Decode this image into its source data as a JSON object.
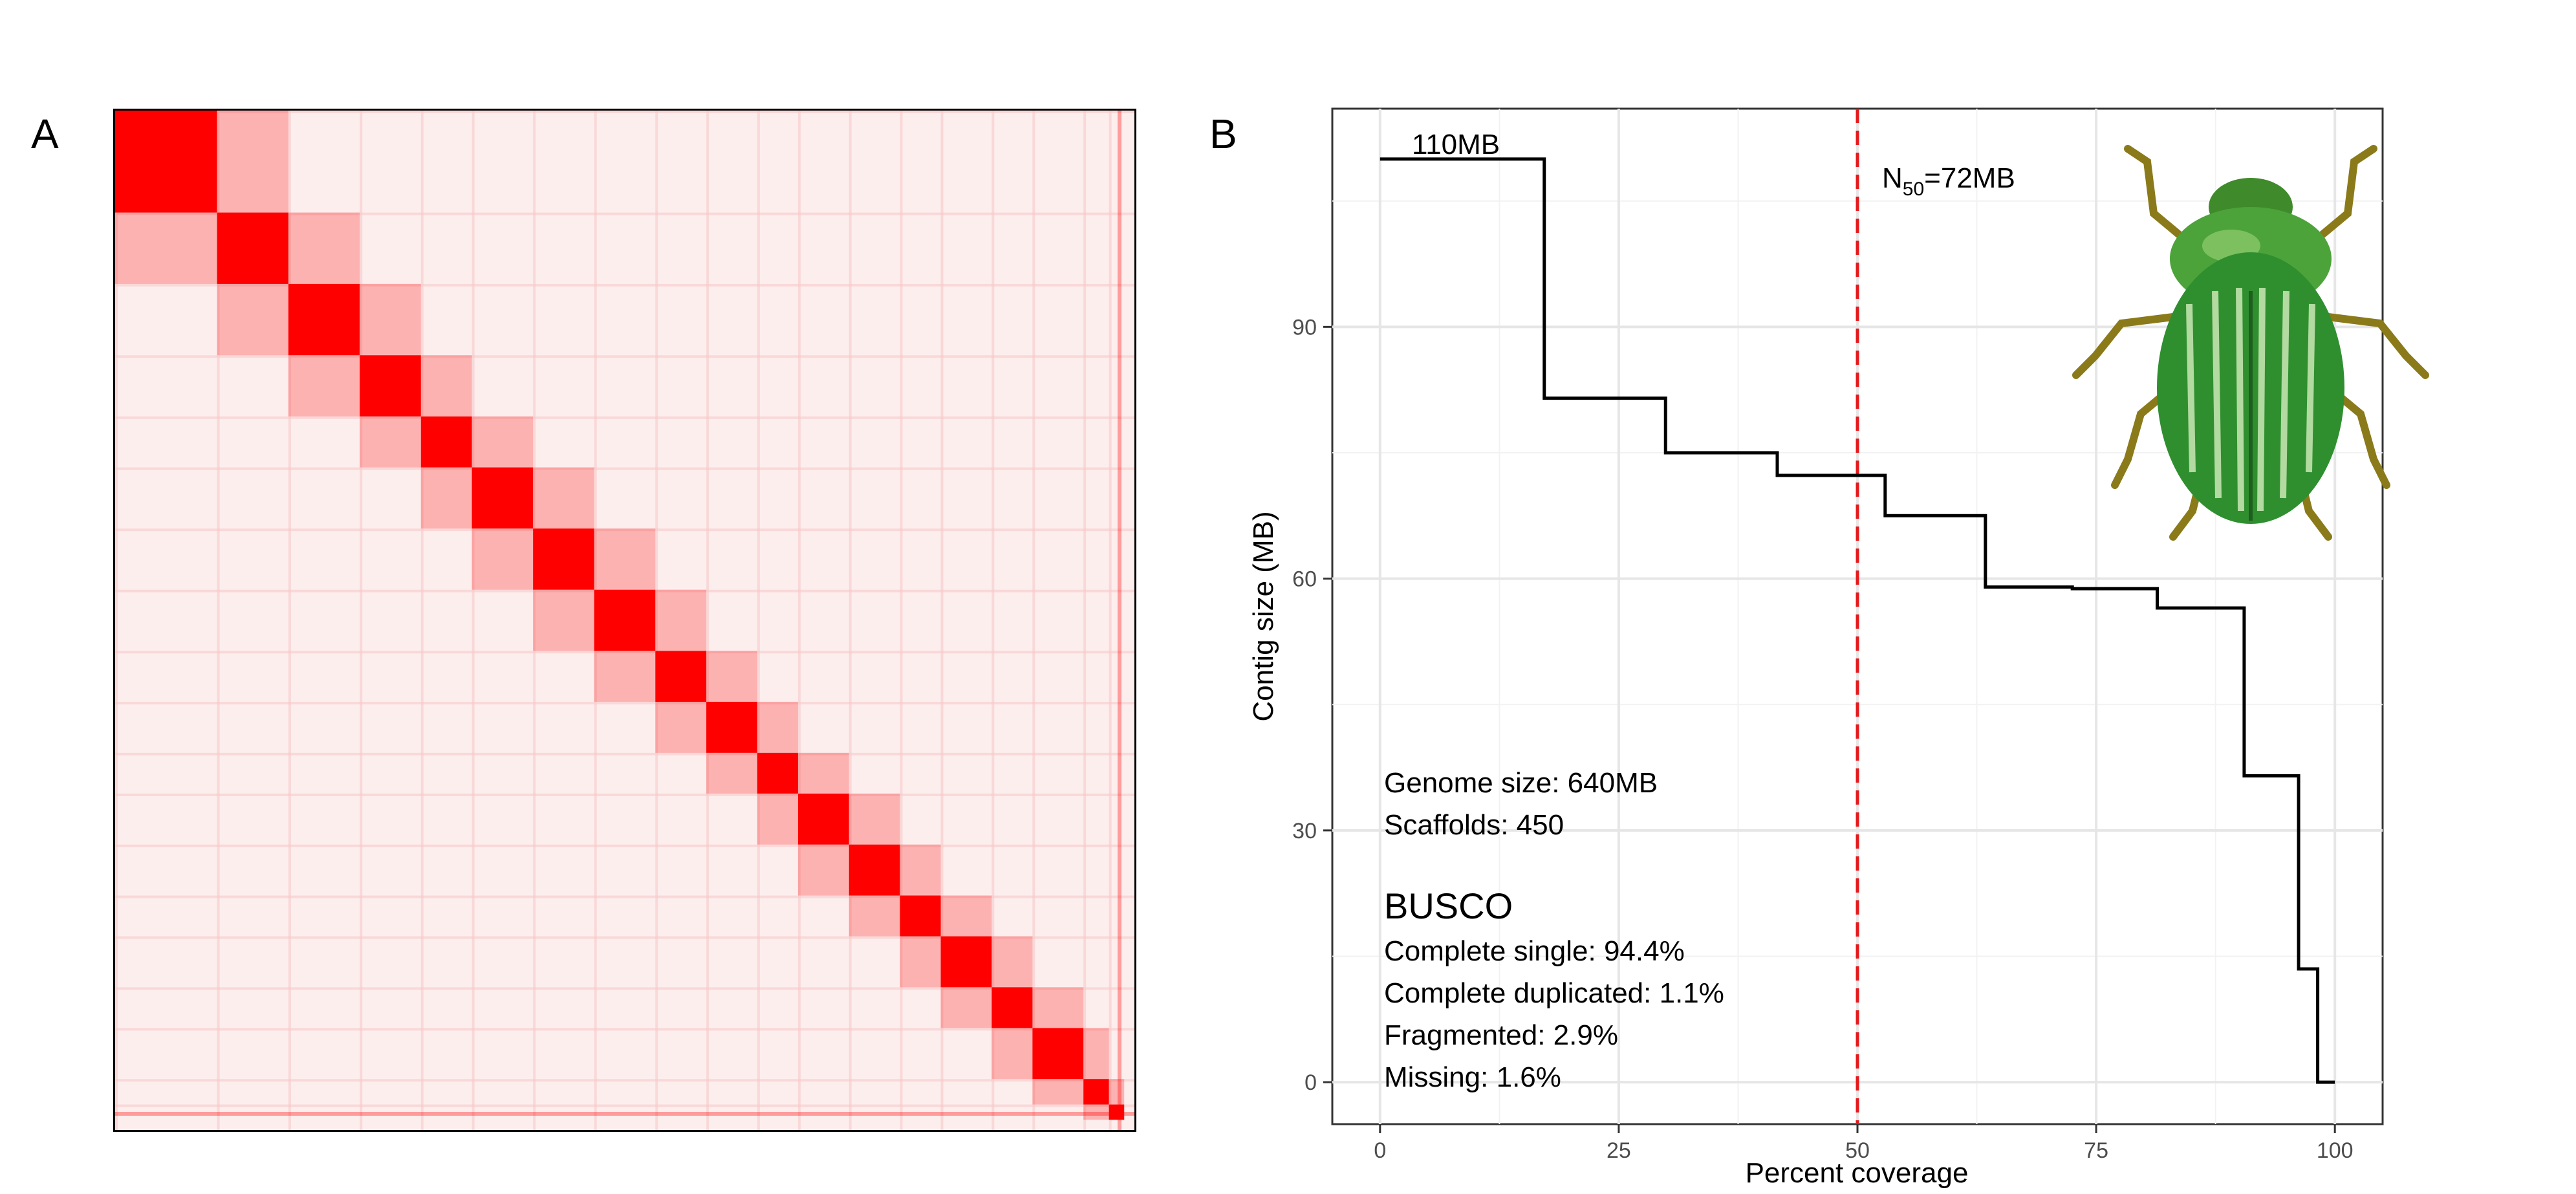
{
  "panels": {
    "a_label": "A",
    "b_label": "B"
  },
  "hic_map": {
    "description_type": "heatmap",
    "color": "#ff0000",
    "background": "#fdeeee",
    "blocks": [
      [
        0.0,
        0.1
      ],
      [
        0.1,
        0.17
      ],
      [
        0.17,
        0.24
      ],
      [
        0.24,
        0.3
      ],
      [
        0.3,
        0.35
      ],
      [
        0.35,
        0.41
      ],
      [
        0.41,
        0.47
      ],
      [
        0.47,
        0.53
      ],
      [
        0.53,
        0.58
      ],
      [
        0.58,
        0.63
      ],
      [
        0.63,
        0.67
      ],
      [
        0.67,
        0.72
      ],
      [
        0.72,
        0.77
      ],
      [
        0.77,
        0.81
      ],
      [
        0.81,
        0.86
      ],
      [
        0.86,
        0.9
      ],
      [
        0.9,
        0.95
      ],
      [
        0.95,
        0.975
      ],
      [
        0.975,
        0.99
      ]
    ]
  },
  "chart_data": {
    "type": "line",
    "step": true,
    "xlabel": "Percent coverage",
    "ylabel": "Contig size (MB)",
    "xlim": [
      -5,
      105
    ],
    "ylim": [
      -5,
      116
    ],
    "xticks": [
      0,
      25,
      50,
      75,
      100
    ],
    "yticks": [
      0,
      30,
      60,
      90
    ],
    "grid": true,
    "series": [
      {
        "color": "#000000",
        "x": [
          0,
          17.2,
          29.9,
          41.6,
          52.9,
          63.4,
          72.5,
          81.4,
          90.5,
          96.2,
          98.2,
          100
        ],
        "y": [
          110,
          81.5,
          75,
          72.3,
          67.5,
          59,
          58.8,
          56.5,
          36.5,
          13.5,
          0,
          0
        ]
      }
    ],
    "reference_line": {
      "x": 50,
      "color": "#e41a1c",
      "style": "dashed"
    },
    "annotations": {
      "top_value": "110MB",
      "n50_prefix": "N",
      "n50_sub": "50",
      "n50_value": "=72MB",
      "genome_size": "Genome size: 640MB",
      "scaffolds": "Scaffolds: 450",
      "busco_title": "BUSCO",
      "busco_single": "Complete single: 94.4%",
      "busco_duplicated": "Complete duplicated: 1.1%",
      "busco_fragmented": "Fragmented: 2.9%",
      "busco_missing": "Missing: 1.6%"
    }
  },
  "beetle_image": {
    "icon": "green-scarab-beetle-icon",
    "body_color": "#2e8b2e",
    "legs_color": "#8a7a1a"
  }
}
